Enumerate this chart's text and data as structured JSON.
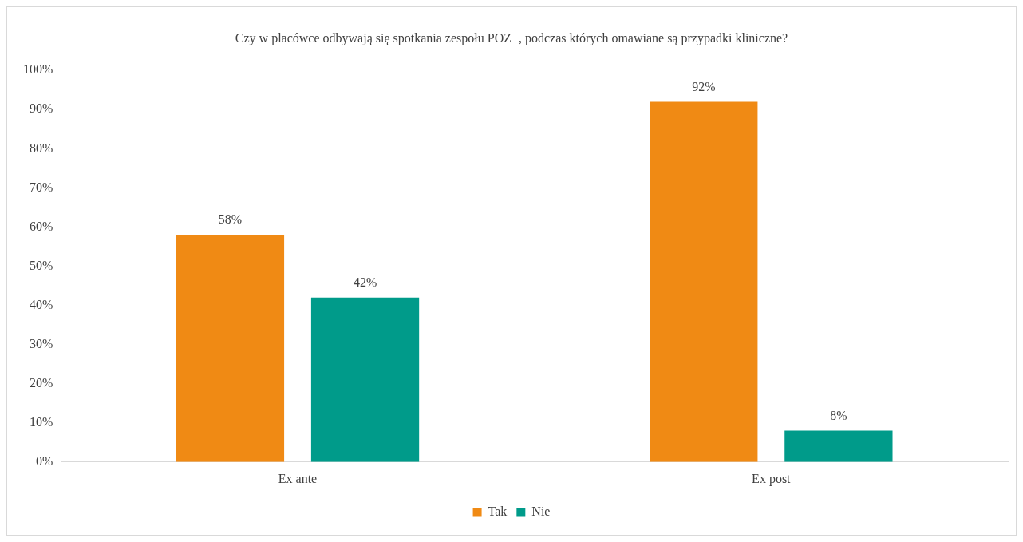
{
  "chart_data": {
    "type": "bar",
    "title": "Czy w placówce odbywają się spotkania zespołu POZ+, podczas których omawiane są przypadki kliniczne?",
    "categories": [
      "Ex ante",
      "Ex post"
    ],
    "series": [
      {
        "name": "Tak",
        "color": "#f08a14",
        "values": [
          58,
          92
        ],
        "value_labels": [
          "58%",
          "92%"
        ]
      },
      {
        "name": "Nie",
        "color": "#009b8a",
        "values": [
          42,
          8
        ],
        "value_labels": [
          "42%",
          "8%"
        ]
      }
    ],
    "ylim": [
      0,
      100
    ],
    "yticks": [
      {
        "value": 0,
        "label": "0%"
      },
      {
        "value": 10,
        "label": "10%"
      },
      {
        "value": 20,
        "label": "20%"
      },
      {
        "value": 30,
        "label": "30%"
      },
      {
        "value": 40,
        "label": "40%"
      },
      {
        "value": 50,
        "label": "50%"
      },
      {
        "value": 60,
        "label": "60%"
      },
      {
        "value": 70,
        "label": "70%"
      },
      {
        "value": 80,
        "label": "80%"
      },
      {
        "value": 90,
        "label": "90%"
      },
      {
        "value": 100,
        "label": "100%"
      }
    ],
    "grid": false,
    "legend": "bottom"
  }
}
